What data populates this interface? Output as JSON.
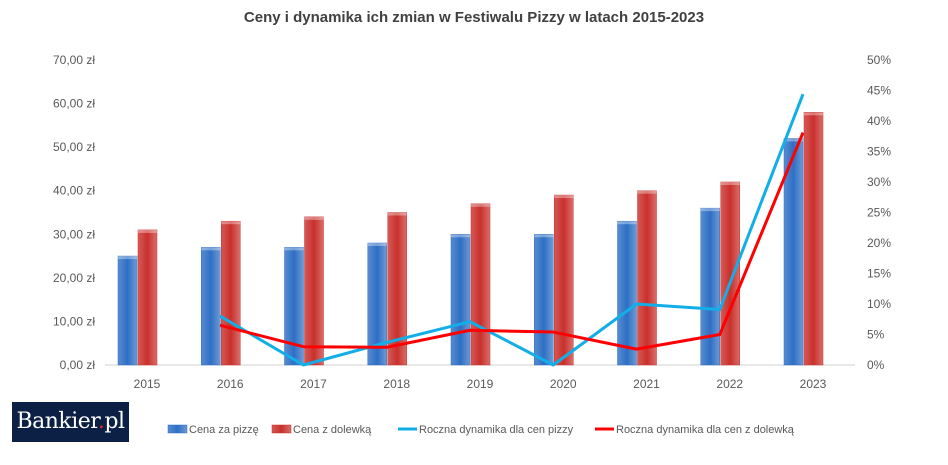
{
  "chart_data": {
    "type": "bar",
    "title": "Ceny i dynamika ich zmian w Festiwalu Pizzy w latach 2015-2023",
    "categories": [
      "2015",
      "2016",
      "2017",
      "2018",
      "2019",
      "2020",
      "2021",
      "2022",
      "2023"
    ],
    "y_left": {
      "ylim": [
        0,
        70
      ],
      "ticks": [
        0,
        10,
        20,
        30,
        40,
        50,
        60,
        70
      ],
      "tick_labels": [
        "0,00 zł",
        "10,00 zł",
        "20,00 zł",
        "30,00 zł",
        "40,00 zł",
        "50,00 zł",
        "60,00 zł",
        "70,00 zł"
      ]
    },
    "y_right": {
      "ylim": [
        0,
        50
      ],
      "ticks": [
        0,
        5,
        10,
        15,
        20,
        25,
        30,
        35,
        40,
        45,
        50
      ],
      "tick_labels": [
        "0%",
        "5%",
        "10%",
        "15%",
        "20%",
        "25%",
        "30%",
        "35%",
        "40%",
        "45%",
        "50%"
      ]
    },
    "series": [
      {
        "name": "Cena za pizzę",
        "type": "bar",
        "axis": "left",
        "color": "#2e6fc4",
        "values": [
          25,
          27,
          27,
          28,
          30,
          30,
          33,
          36,
          52
        ]
      },
      {
        "name": "Cena z dolewką",
        "type": "bar",
        "axis": "left",
        "color": "#c9302c",
        "values": [
          31,
          33,
          34,
          35,
          37,
          39,
          40,
          42,
          58
        ]
      },
      {
        "name": "Roczna dynamika dla cen pizzy",
        "type": "line",
        "axis": "right",
        "color": "#11aee8",
        "values": [
          null,
          8.0,
          0,
          3.7,
          7.1,
          0,
          10.0,
          9.1,
          44.4
        ]
      },
      {
        "name": "Roczna dynamika dla cen z dolewką",
        "type": "line",
        "axis": "right",
        "color": "#ff0000",
        "values": [
          null,
          6.5,
          3.0,
          2.9,
          5.7,
          5.4,
          2.6,
          5.0,
          38.1
        ]
      }
    ],
    "legend": "bottom",
    "grid": false
  },
  "logo": {
    "text": "Bankier",
    "dot": ".",
    "suffix": "pl"
  }
}
